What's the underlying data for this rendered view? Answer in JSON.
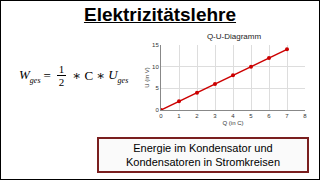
{
  "chart_data": {
    "type": "line",
    "title": "Q-U-Diagramm",
    "x_label": "Q (in C)",
    "y_label": "U (in V)",
    "x": [
      0,
      1,
      2,
      3,
      4,
      5,
      6,
      7
    ],
    "values": [
      0,
      2,
      4,
      6,
      8,
      10,
      12,
      14
    ],
    "color": "#cc0000",
    "marker": "circle",
    "xlim": [
      0,
      8
    ],
    "xticks": [
      0,
      1,
      2,
      3,
      4,
      5,
      6,
      7,
      8
    ],
    "ylim": [
      0,
      15
    ],
    "yticks": [
      0,
      5,
      10,
      15
    ],
    "grid": true
  },
  "header": {
    "title": "Elektrizitätslehre"
  },
  "formula": {
    "lhs": "W",
    "lhs_sub": "ges",
    "operator": "=",
    "numerator": "1",
    "denominator": "2",
    "middle": "∗ C ∗",
    "rhs": "U",
    "rhs_sub": "ges"
  },
  "footer": {
    "lines": [
      "Energie im Kondensator und",
      "Kondensatoren in Stromkreisen"
    ]
  }
}
